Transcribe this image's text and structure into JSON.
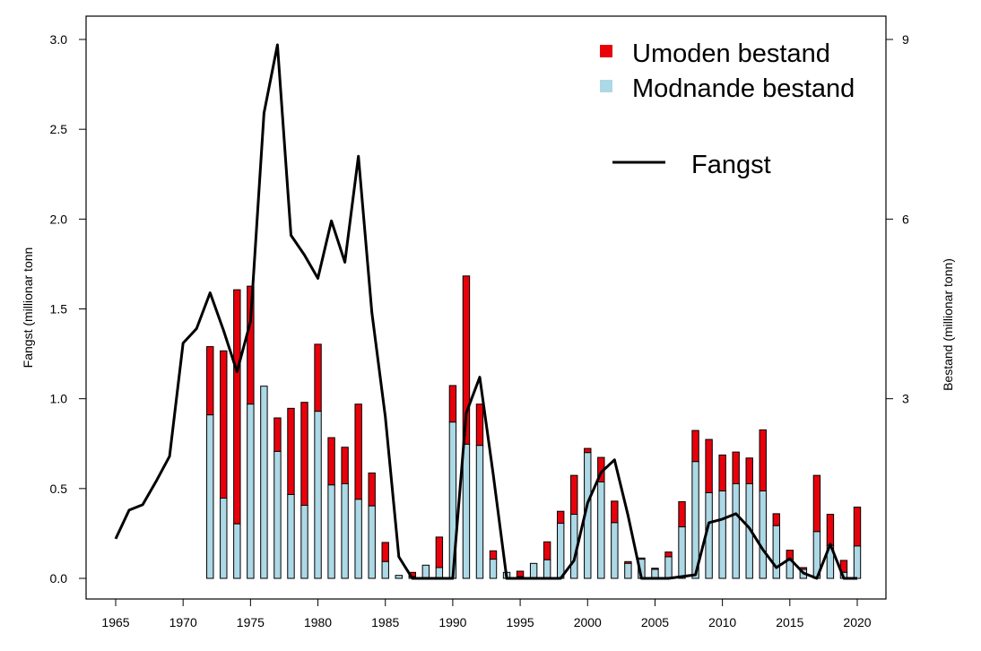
{
  "chart_data": {
    "type": "bar",
    "left_axis_label": "Fangst (millionar tonn",
    "right_axis_label": "Bestand (millionar tonn)",
    "x_ticks": [
      1965,
      1970,
      1975,
      1980,
      1985,
      1990,
      1995,
      2000,
      2005,
      2010,
      2015,
      2020
    ],
    "left_ticks": [
      "0.0",
      "0.5",
      "1.0",
      "1.5",
      "2.0",
      "2.5",
      "3.0"
    ],
    "right_ticks": [
      "3",
      "6",
      "9"
    ],
    "xlim": [
      1965,
      2020
    ],
    "ylim_left": [
      0,
      3.0
    ],
    "ylim_right": [
      0,
      9
    ],
    "legend": {
      "placement": "top-right",
      "immature_label": "Umoden bestand",
      "mature_label": "Modnande bestand",
      "catch_label": "Fangst"
    },
    "colors": {
      "immature": "#e8000b",
      "mature": "#add8e6",
      "outline": "#000000",
      "line": "#000000"
    },
    "stock_years": [
      1972,
      1973,
      1974,
      1975,
      1976,
      1977,
      1978,
      1979,
      1980,
      1981,
      1982,
      1983,
      1984,
      1985,
      1986,
      1987,
      1988,
      1989,
      1990,
      1991,
      1992,
      1993,
      1994,
      1995,
      1996,
      1997,
      1998,
      1999,
      2000,
      2001,
      2002,
      2003,
      2004,
      2005,
      2006,
      2007,
      2008,
      2009,
      2010,
      2011,
      2012,
      2013,
      2014,
      2015,
      2016,
      2017,
      2018,
      2019,
      2020
    ],
    "mature_stock": [
      2.73,
      1.34,
      0.91,
      2.91,
      3.21,
      2.12,
      1.4,
      1.22,
      2.79,
      1.56,
      1.58,
      1.32,
      1.21,
      0.28,
      0.05,
      0.03,
      0.22,
      0.18,
      2.61,
      2.24,
      2.22,
      0.32,
      0.1,
      0.03,
      0.25,
      0.31,
      0.92,
      1.07,
      2.1,
      1.61,
      0.93,
      0.25,
      0.32,
      0.15,
      0.36,
      0.86,
      1.95,
      1.43,
      1.46,
      1.58,
      1.58,
      1.46,
      0.88,
      0.3,
      0.15,
      0.78,
      0.55,
      0.1,
      0.54
    ],
    "total_stock": [
      3.87,
      3.8,
      4.82,
      4.88,
      3.21,
      2.68,
      2.84,
      2.94,
      3.91,
      2.35,
      2.19,
      2.91,
      1.76,
      0.6,
      0.05,
      0.1,
      0.22,
      0.69,
      3.22,
      5.05,
      2.91,
      0.46,
      0.1,
      0.12,
      0.25,
      0.61,
      1.12,
      1.72,
      2.17,
      2.02,
      1.29,
      0.28,
      0.34,
      0.17,
      0.44,
      1.28,
      2.47,
      2.32,
      2.06,
      2.11,
      2.01,
      2.48,
      1.08,
      0.47,
      0.18,
      1.72,
      1.07,
      0.3,
      1.19
    ],
    "catch_years": [
      1965,
      1966,
      1967,
      1968,
      1969,
      1970,
      1971,
      1972,
      1973,
      1974,
      1975,
      1976,
      1977,
      1978,
      1979,
      1980,
      1981,
      1982,
      1983,
      1984,
      1985,
      1986,
      1987,
      1988,
      1989,
      1990,
      1991,
      1992,
      1993,
      1994,
      1995,
      1996,
      1997,
      1998,
      1999,
      2000,
      2001,
      2002,
      2003,
      2004,
      2005,
      2006,
      2007,
      2008,
      2009,
      2010,
      2011,
      2012,
      2013,
      2014,
      2015,
      2016,
      2017,
      2018,
      2019,
      2020
    ],
    "catch": [
      0.22,
      0.38,
      0.41,
      0.54,
      0.68,
      1.31,
      1.39,
      1.59,
      1.38,
      1.15,
      1.43,
      2.59,
      2.97,
      1.91,
      1.8,
      1.67,
      1.99,
      1.76,
      2.35,
      1.48,
      0.9,
      0.12,
      0.0,
      0.0,
      0.0,
      0.0,
      0.92,
      1.12,
      0.58,
      0.0,
      0.0,
      0.0,
      0.0,
      0.0,
      0.1,
      0.42,
      0.59,
      0.66,
      0.35,
      0.0,
      0.0,
      0.0,
      0.01,
      0.02,
      0.31,
      0.33,
      0.36,
      0.28,
      0.16,
      0.06,
      0.11,
      0.03,
      0.0,
      0.19,
      0.0,
      0.0
    ]
  }
}
